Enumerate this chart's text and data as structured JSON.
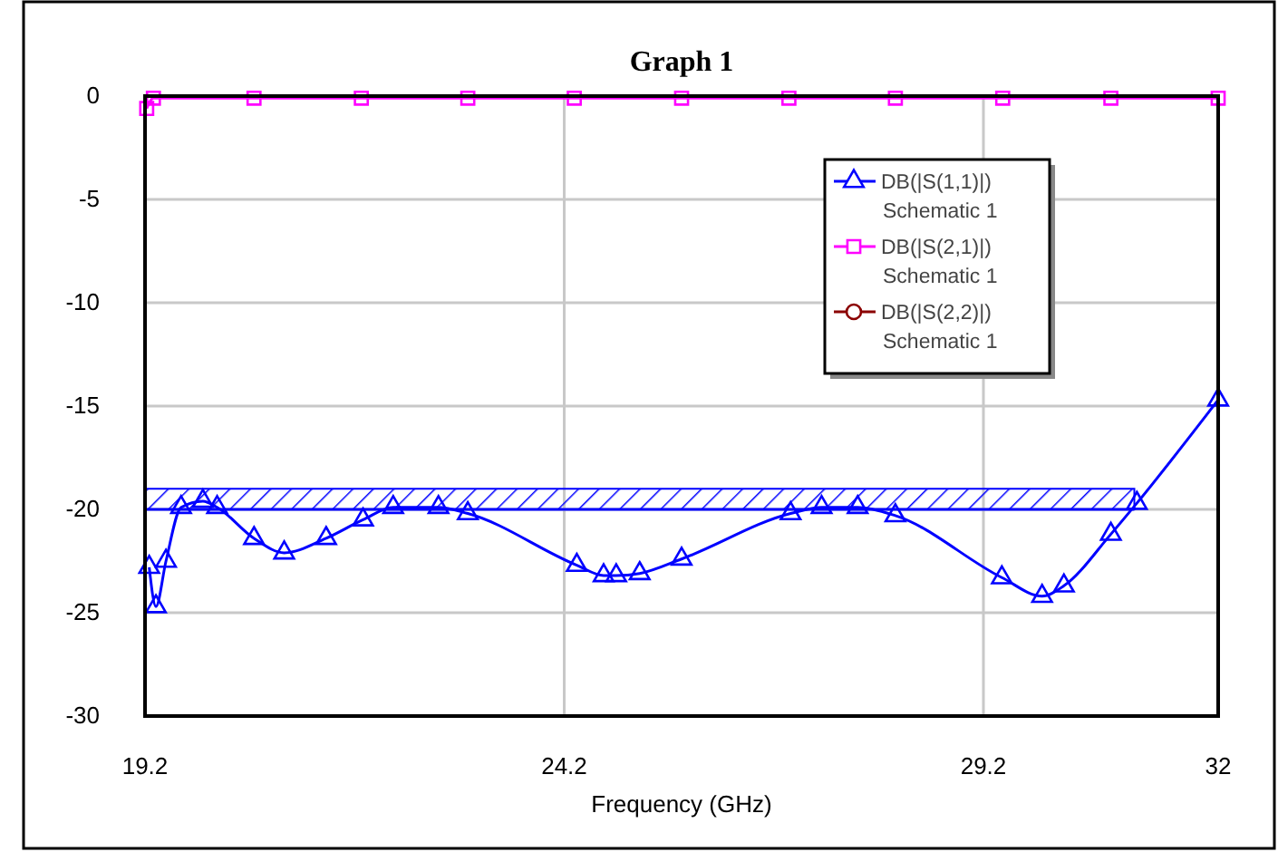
{
  "chart_data": {
    "type": "line",
    "title": "Graph 1",
    "xlabel": "Frequency (GHz)",
    "xlim": [
      19.2,
      32
    ],
    "xticks": [
      19.2,
      24.2,
      29.2,
      32
    ],
    "ylim": [
      -30,
      0
    ],
    "yticks": [
      -30,
      -25,
      -20,
      -15,
      -10,
      -5,
      0
    ],
    "grid": true,
    "legend": "right",
    "line_style": "solid",
    "series": [
      {
        "name": "DB(|S(1,1)|)\nSchematic 1",
        "color": "#0000ff",
        "marker": "triangle",
        "x": [
          19.25,
          19.33,
          19.45,
          19.63,
          19.89,
          20.06,
          20.5,
          20.86,
          21.36,
          21.8,
          22.16,
          22.7,
          23.05,
          24.35,
          24.67,
          24.82,
          25.1,
          25.6,
          26.9,
          27.27,
          27.7,
          28.15,
          29.42,
          29.9,
          30.16,
          30.72,
          31.03,
          32
        ],
        "values": [
          -22.8,
          -24.7,
          -22.5,
          -19.9,
          -19.6,
          -19.9,
          -21.4,
          -22.1,
          -21.4,
          -20.5,
          -19.9,
          -19.9,
          -20.2,
          -22.7,
          -23.2,
          -23.2,
          -23.1,
          -22.4,
          -20.2,
          -19.9,
          -19.9,
          -20.3,
          -23.3,
          -24.2,
          -23.7,
          -21.2,
          -19.7,
          -14.7
        ]
      },
      {
        "name": "DB(|S(2,1)|)\nSchematic 1",
        "color": "#ff00ff",
        "marker": "square",
        "x": [
          19.22,
          19.3,
          20.5,
          21.78,
          23.05,
          24.32,
          25.6,
          26.88,
          28.15,
          29.43,
          30.72,
          32
        ],
        "values": [
          -0.6,
          -0.1,
          -0.1,
          -0.1,
          -0.1,
          -0.1,
          -0.1,
          -0.1,
          -0.1,
          -0.1,
          -0.1,
          -0.1
        ]
      },
      {
        "name": "DB(|S(2,2)|)\nSchematic 1",
        "color": "#8b0000",
        "marker": "circle"
      },
      {
        "type": "line",
        "color": "#0000ff",
        "marker": "none",
        "x": [
          19.2,
          31
        ],
        "values": [
          -20,
          -20
        ],
        "lower": [
          -20,
          -20
        ],
        "upper": [
          -19,
          -19
        ]
      }
    ]
  }
}
